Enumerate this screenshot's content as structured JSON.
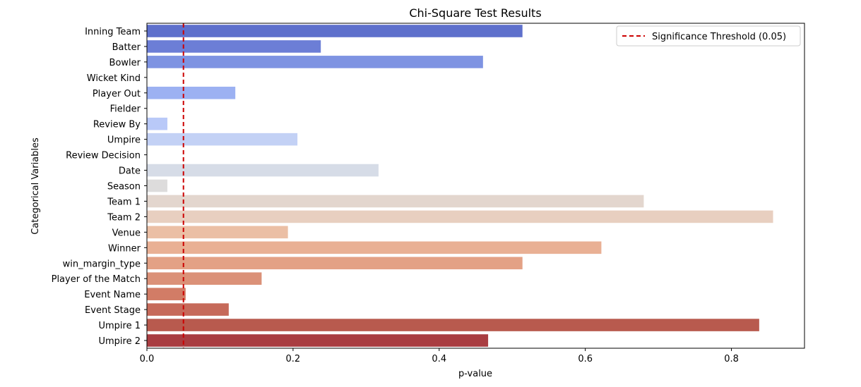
{
  "chart_data": {
    "type": "bar",
    "orientation": "horizontal",
    "title": "Chi-Square Test Results",
    "xlabel": "p-value",
    "ylabel": "Categorical Variables",
    "xlim": [
      0,
      0.9
    ],
    "xticks": [
      "0.0",
      "0.2",
      "0.4",
      "0.6",
      "0.8"
    ],
    "xtick_values": [
      0,
      0.2,
      0.4,
      0.6,
      0.8
    ],
    "categories": [
      "Inning Team",
      "Batter",
      "Bowler",
      "Wicket Kind",
      "Player Out",
      "Fielder",
      "Review By",
      "Umpire",
      "Review Decision",
      "Date",
      "Season",
      "Team 1",
      "Team 2",
      "Venue",
      "Winner",
      "win_margin_type",
      "Player of the Match",
      "Event Name",
      "Event Stage",
      "Umpire 1",
      "Umpire 2"
    ],
    "values": [
      0.514,
      0.238,
      0.46,
      0.0,
      0.121,
      0.0,
      0.028,
      0.206,
      0.0,
      0.317,
      0.028,
      0.68,
      0.857,
      0.193,
      0.622,
      0.514,
      0.157,
      0.053,
      0.112,
      0.838,
      0.467
    ],
    "colors": [
      "#5e70cc",
      "#6c7ed6",
      "#7e93e2",
      "#8da3ec",
      "#9cb1f2",
      "#abbef6",
      "#b9c9f8",
      "#c3d1f5",
      "#cfd8f0",
      "#d6dce7",
      "#dddcdc",
      "#e3d6ce",
      "#e8cfc0",
      "#ebbfa5",
      "#e9b094",
      "#e3a185",
      "#db9178",
      "#d27c66",
      "#c66a5a",
      "#b85a4e",
      "#a93d41"
    ],
    "threshold": {
      "value": 0.05,
      "label": "Significance Threshold (0.05)",
      "color": "#cc0000",
      "style": "dashed"
    },
    "legend_position": "top-right",
    "grid": false
  }
}
